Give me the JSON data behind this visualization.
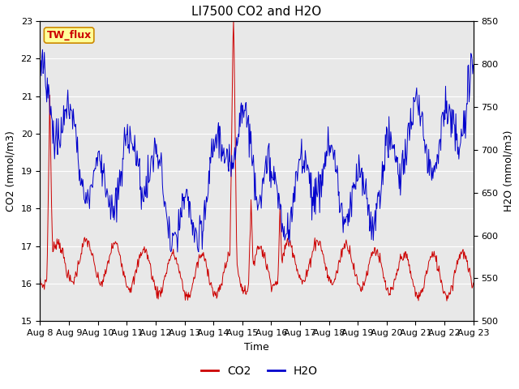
{
  "title": "LI7500 CO2 and H2O",
  "xlabel": "Time",
  "ylabel_left": "CO2 (mmol/m3)",
  "ylabel_right": "H2O (mmol/m3)",
  "ylim_left": [
    15.0,
    23.0
  ],
  "ylim_right": [
    500,
    850
  ],
  "yticks_left": [
    15.0,
    16.0,
    17.0,
    18.0,
    19.0,
    20.0,
    21.0,
    22.0,
    23.0
  ],
  "yticks_right": [
    500,
    550,
    600,
    650,
    700,
    750,
    800,
    850
  ],
  "xtick_labels": [
    "Aug 8",
    "Aug 9",
    "Aug 10",
    "Aug 11",
    "Aug 12",
    "Aug 13",
    "Aug 14",
    "Aug 15",
    "Aug 16",
    "Aug 17",
    "Aug 18",
    "Aug 19",
    "Aug 20",
    "Aug 21",
    "Aug 22",
    "Aug 23"
  ],
  "site_label": "TW_flux",
  "legend_co2": "CO2",
  "legend_h2o": "H2O",
  "co2_color": "#cc0000",
  "h2o_color": "#0000cc",
  "background_color": "#e8e8e8",
  "title_fontsize": 11,
  "axis_fontsize": 9,
  "tick_fontsize": 8,
  "legend_fontsize": 10
}
